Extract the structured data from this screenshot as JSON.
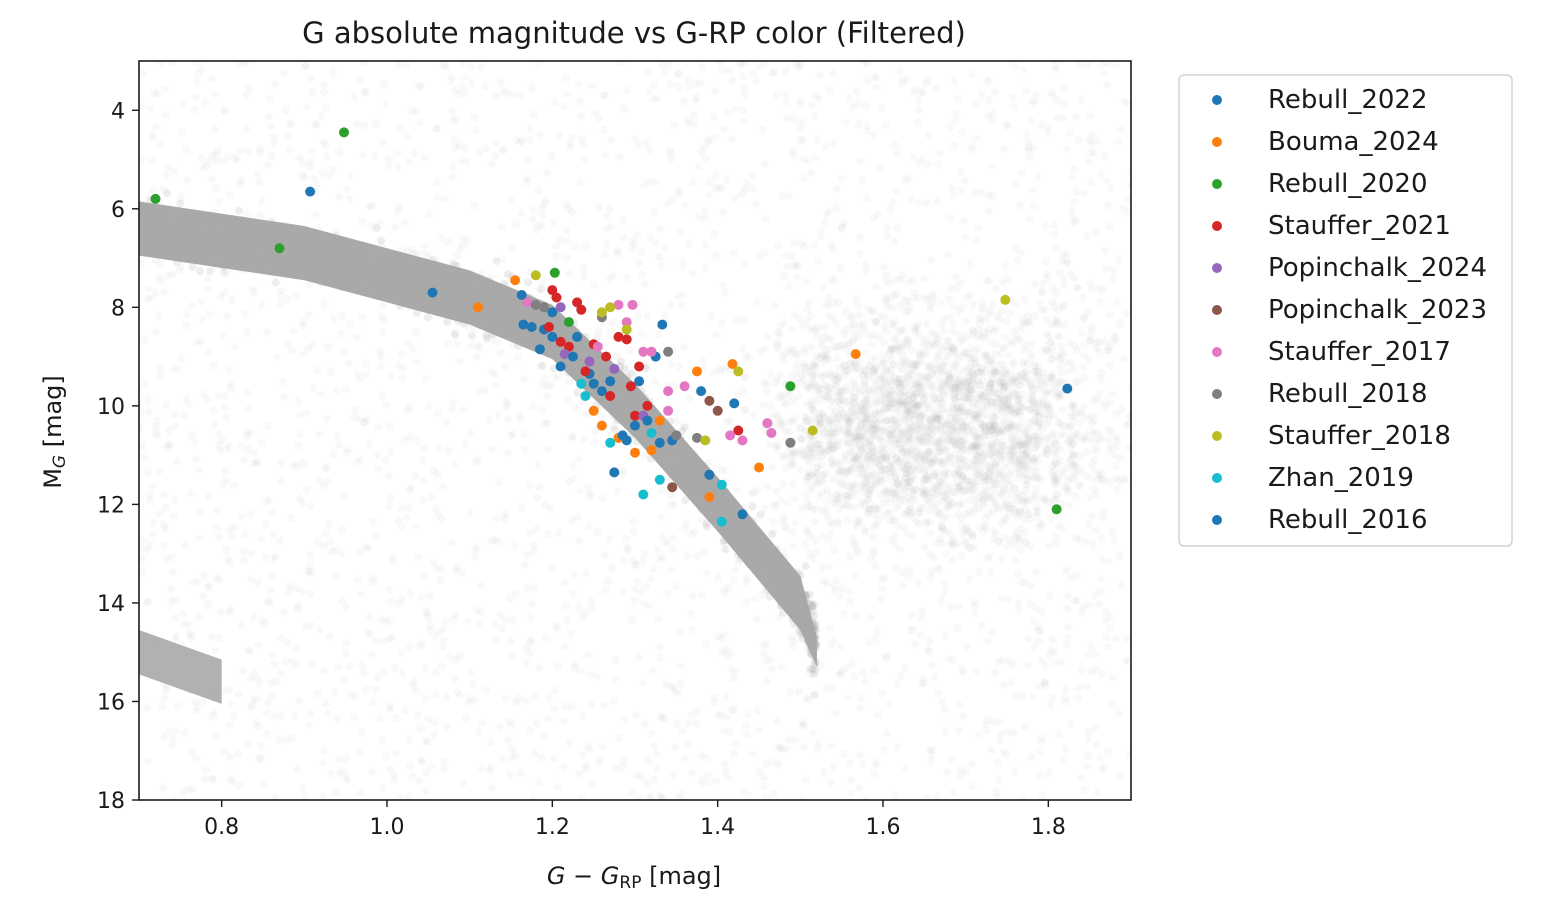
{
  "chart_data": {
    "type": "scatter",
    "title": "G absolute magnitude vs G-RP color (Filtered)",
    "xlabel": {
      "pre": "G − G",
      "sub": "RP",
      "post": " [mag]"
    },
    "ylabel": {
      "pre": "M",
      "sub": "G",
      "post": " [mag]"
    },
    "xlim": [
      0.7,
      1.9
    ],
    "ylim": [
      18,
      3
    ],
    "y_inverted": true,
    "xticks": [
      0.8,
      1.0,
      1.2,
      1.4,
      1.6,
      1.8
    ],
    "xtick_labels": [
      "0.8",
      "1.0",
      "1.2",
      "1.4",
      "1.6",
      "1.8"
    ],
    "yticks": [
      4,
      6,
      8,
      10,
      12,
      14,
      16,
      18
    ],
    "ytick_labels": [
      "4",
      "6",
      "8",
      "10",
      "12",
      "14",
      "16",
      "18"
    ],
    "grid": false,
    "legend_position": "outside-right",
    "background_population": {
      "color": "#a9a9a9",
      "main_sequence_ridge": [
        [
          0.7,
          6.4
        ],
        [
          0.9,
          6.9
        ],
        [
          1.1,
          7.8
        ],
        [
          1.2,
          8.5
        ],
        [
          1.3,
          10.1
        ],
        [
          1.4,
          12.0
        ],
        [
          1.5,
          14.0
        ],
        [
          1.52,
          15.0
        ]
      ],
      "white_dwarf_locus": [
        [
          0.7,
          15.0
        ],
        [
          0.8,
          15.6
        ]
      ]
    },
    "series": [
      {
        "name": "Rebull_2022",
        "color": "#1f77b4",
        "points": [
          [
            0.907,
            5.65
          ],
          [
            1.055,
            7.7
          ],
          [
            1.163,
            7.75
          ],
          [
            1.175,
            8.4
          ],
          [
            1.19,
            8.45
          ],
          [
            1.2,
            8.1
          ],
          [
            1.21,
            9.2
          ],
          [
            1.185,
            8.85
          ],
          [
            1.23,
            8.6
          ],
          [
            1.245,
            9.35
          ],
          [
            1.26,
            9.7
          ],
          [
            1.29,
            10.7
          ],
          [
            1.305,
            9.5
          ],
          [
            1.325,
            9.0
          ],
          [
            1.333,
            8.35
          ],
          [
            1.345,
            10.7
          ],
          [
            1.38,
            9.7
          ],
          [
            1.39,
            11.4
          ],
          [
            1.42,
            9.95
          ],
          [
            1.43,
            12.2
          ],
          [
            1.823,
            9.65
          ]
        ]
      },
      {
        "name": "Bouma_2024",
        "color": "#ff7f0e",
        "points": [
          [
            1.11,
            8.0
          ],
          [
            1.155,
            7.45
          ],
          [
            1.25,
            10.1
          ],
          [
            1.26,
            10.4
          ],
          [
            1.28,
            10.65
          ],
          [
            1.3,
            10.95
          ],
          [
            1.32,
            10.9
          ],
          [
            1.33,
            10.3
          ],
          [
            1.375,
            9.3
          ],
          [
            1.39,
            11.85
          ],
          [
            1.418,
            9.15
          ],
          [
            1.45,
            11.25
          ],
          [
            1.567,
            8.95
          ]
        ]
      },
      {
        "name": "Rebull_2020",
        "color": "#2ca02c",
        "points": [
          [
            0.72,
            5.8
          ],
          [
            0.87,
            6.8
          ],
          [
            0.948,
            4.45
          ],
          [
            1.203,
            7.3
          ],
          [
            1.22,
            8.3
          ],
          [
            1.488,
            9.6
          ],
          [
            1.81,
            12.1
          ]
        ]
      },
      {
        "name": "Stauffer_2021",
        "color": "#d62728",
        "points": [
          [
            1.2,
            7.65
          ],
          [
            1.205,
            7.8
          ],
          [
            1.21,
            8.7
          ],
          [
            1.22,
            8.8
          ],
          [
            1.23,
            7.9
          ],
          [
            1.235,
            8.05
          ],
          [
            1.24,
            9.3
          ],
          [
            1.25,
            8.75
          ],
          [
            1.265,
            9.0
          ],
          [
            1.27,
            9.8
          ],
          [
            1.28,
            8.6
          ],
          [
            1.29,
            8.65
          ],
          [
            1.295,
            9.6
          ],
          [
            1.3,
            10.2
          ],
          [
            1.305,
            9.2
          ],
          [
            1.315,
            10.0
          ],
          [
            1.196,
            8.4
          ],
          [
            1.425,
            10.5
          ]
        ]
      },
      {
        "name": "Popinchalk_2024",
        "color": "#9467bd",
        "points": [
          [
            1.21,
            8.0
          ],
          [
            1.215,
            8.95
          ],
          [
            1.245,
            9.1
          ],
          [
            1.275,
            9.25
          ],
          [
            1.31,
            10.2
          ]
        ]
      },
      {
        "name": "Popinchalk_2023",
        "color": "#8c564b",
        "points": [
          [
            1.345,
            11.65
          ],
          [
            1.39,
            9.9
          ],
          [
            1.4,
            10.1
          ]
        ]
      },
      {
        "name": "Stauffer_2017",
        "color": "#e377c2",
        "points": [
          [
            1.17,
            7.9
          ],
          [
            1.255,
            8.8
          ],
          [
            1.28,
            7.95
          ],
          [
            1.29,
            8.3
          ],
          [
            1.297,
            7.95
          ],
          [
            1.31,
            8.9
          ],
          [
            1.32,
            8.9
          ],
          [
            1.34,
            9.7
          ],
          [
            1.36,
            9.6
          ],
          [
            1.415,
            10.6
          ],
          [
            1.46,
            10.35
          ],
          [
            1.465,
            10.55
          ],
          [
            1.43,
            10.7
          ],
          [
            1.34,
            10.1
          ]
        ]
      },
      {
        "name": "Rebull_2018",
        "color": "#7f7f7f",
        "points": [
          [
            1.18,
            7.95
          ],
          [
            1.19,
            8.0
          ],
          [
            1.26,
            8.2
          ],
          [
            1.34,
            8.9
          ],
          [
            1.35,
            10.6
          ],
          [
            1.375,
            10.65
          ],
          [
            1.488,
            10.75
          ]
        ]
      },
      {
        "name": "Stauffer_2018",
        "color": "#bcbd22",
        "points": [
          [
            1.18,
            7.35
          ],
          [
            1.26,
            8.1
          ],
          [
            1.27,
            8.0
          ],
          [
            1.29,
            8.45
          ],
          [
            1.425,
            9.3
          ],
          [
            1.515,
            10.5
          ],
          [
            1.748,
            7.85
          ],
          [
            1.385,
            10.7
          ]
        ]
      },
      {
        "name": "Zhan_2019",
        "color": "#17becf",
        "points": [
          [
            1.235,
            9.55
          ],
          [
            1.24,
            9.8
          ],
          [
            1.27,
            10.75
          ],
          [
            1.31,
            11.8
          ],
          [
            1.33,
            11.5
          ],
          [
            1.405,
            12.35
          ],
          [
            1.405,
            11.6
          ],
          [
            1.32,
            10.55
          ]
        ]
      },
      {
        "name": "Rebull_2016",
        "color": "#1f77b4",
        "points": [
          [
            1.165,
            8.35
          ],
          [
            1.2,
            8.6
          ],
          [
            1.225,
            9.0
          ],
          [
            1.25,
            9.55
          ],
          [
            1.27,
            9.5
          ],
          [
            1.285,
            10.6
          ],
          [
            1.3,
            10.4
          ],
          [
            1.275,
            11.35
          ],
          [
            1.315,
            10.3
          ],
          [
            1.33,
            10.75
          ]
        ]
      }
    ]
  }
}
